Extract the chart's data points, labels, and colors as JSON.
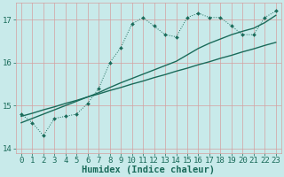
{
  "title": "",
  "xlabel": "Humidex (Indice chaleur)",
  "bg_color": "#c8eaea",
  "grid_color": "#d4a0a0",
  "line_color": "#1a6b5a",
  "x": [
    0,
    1,
    2,
    3,
    4,
    5,
    6,
    7,
    8,
    9,
    10,
    11,
    12,
    13,
    14,
    15,
    16,
    17,
    18,
    19,
    20,
    21,
    22,
    23
  ],
  "y_curve": [
    14.8,
    14.6,
    14.3,
    14.7,
    14.75,
    14.8,
    15.05,
    15.4,
    16.0,
    16.35,
    16.9,
    17.05,
    16.85,
    16.65,
    16.6,
    17.05,
    17.15,
    17.05,
    17.05,
    16.85,
    16.65,
    16.65,
    17.05,
    17.2
  ],
  "y_linear1": [
    14.75,
    14.82,
    14.9,
    14.97,
    15.05,
    15.12,
    15.2,
    15.27,
    15.35,
    15.42,
    15.5,
    15.57,
    15.65,
    15.72,
    15.8,
    15.87,
    15.95,
    16.02,
    16.1,
    16.17,
    16.25,
    16.32,
    16.4,
    16.47
  ],
  "y_linear2": [
    14.6,
    14.7,
    14.8,
    14.9,
    15.0,
    15.1,
    15.2,
    15.3,
    15.42,
    15.53,
    15.63,
    15.73,
    15.83,
    15.93,
    16.03,
    16.18,
    16.33,
    16.45,
    16.55,
    16.65,
    16.73,
    16.8,
    16.93,
    17.1
  ],
  "ylim": [
    13.9,
    17.4
  ],
  "xlim": [
    -0.5,
    23.5
  ],
  "yticks": [
    14,
    15,
    16,
    17
  ],
  "xticks": [
    0,
    1,
    2,
    3,
    4,
    5,
    6,
    7,
    8,
    9,
    10,
    11,
    12,
    13,
    14,
    15,
    16,
    17,
    18,
    19,
    20,
    21,
    22,
    23
  ],
  "tick_fontsize": 6.5,
  "xlabel_fontsize": 7.5
}
